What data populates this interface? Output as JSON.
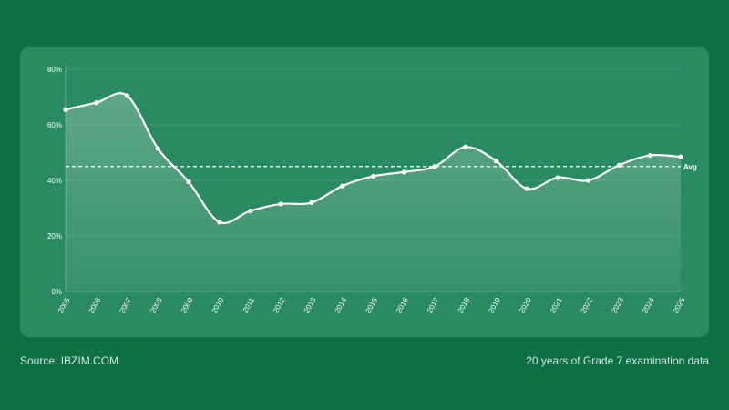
{
  "chart_data": {
    "type": "area",
    "x": [
      "2005",
      "2006",
      "2007",
      "2008",
      "2009",
      "2010",
      "2011",
      "2012",
      "2013",
      "2014",
      "2015",
      "2016",
      "2017",
      "2018",
      "2019",
      "2020",
      "2021",
      "2022",
      "2023",
      "2024",
      "2025"
    ],
    "values": [
      65.5,
      68,
      70.5,
      51.5,
      39.5,
      25,
      29,
      31.5,
      32,
      38,
      41.5,
      43,
      45,
      52,
      47,
      37,
      41,
      40,
      45.5,
      49,
      48.5
    ],
    "average": 45,
    "average_label": "Avg",
    "ylim": [
      0,
      80
    ],
    "yticks": [
      0,
      20,
      40,
      60,
      80
    ],
    "ytick_labels": [
      "0%",
      "20%",
      "40%",
      "60%",
      "80%"
    ],
    "title": "",
    "xlabel": "",
    "ylabel": "",
    "grid": true,
    "line_color": "#ffffff",
    "fill_color": "#ffffff"
  },
  "footer": {
    "source": "Source: IBZIM.COM",
    "note": "20 years of Grade 7 examination data"
  },
  "colors": {
    "background": "#0f7048",
    "panel": "#2a8a62"
  }
}
